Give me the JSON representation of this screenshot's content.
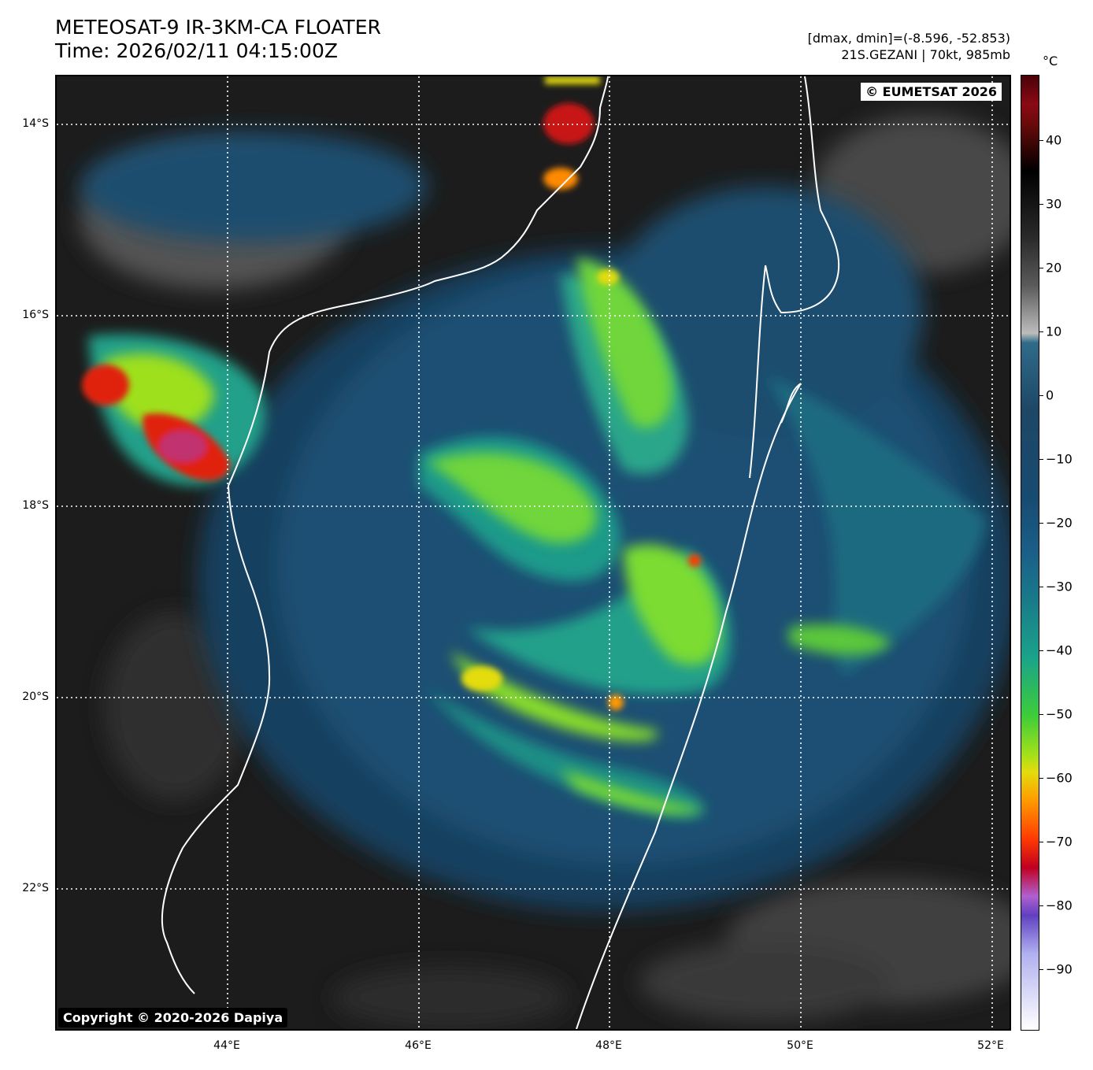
{
  "header": {
    "title_line1": "METEOSAT-9 IR-3KM-CA FLOATER",
    "title_line2": "Time: 2026/02/11 04:15:00Z",
    "meta_line1": "[dmax, dmin]=(-8.596, -52.853)",
    "meta_line2": "21S.GEZANI | 70kt, 985mb"
  },
  "map": {
    "eumetsat_label": "© EUMETSAT 2026",
    "copyright_label": "Copyright © 2020-2026 Dapiya",
    "lat_labels": [
      "14°S",
      "16°S",
      "18°S",
      "20°S",
      "22°S"
    ],
    "lon_labels": [
      "44°E",
      "46°E",
      "48°E",
      "50°E",
      "52°E"
    ]
  },
  "colorbar": {
    "unit": "°C",
    "ticks": [
      "40",
      "30",
      "20",
      "10",
      "0",
      "−10",
      "−20",
      "−30",
      "−40",
      "−50",
      "−60",
      "−70",
      "−80",
      "−90"
    ]
  }
}
